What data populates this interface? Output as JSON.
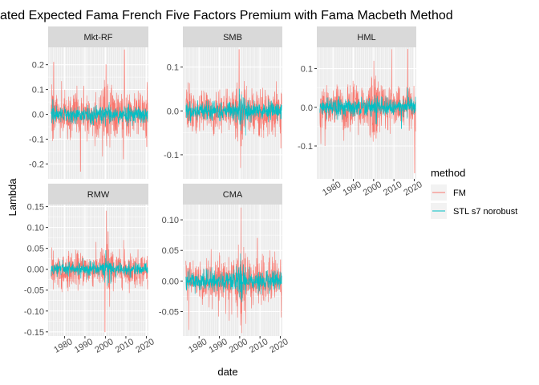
{
  "chart_data": {
    "type": "line",
    "title": "ated Expected Fama French Five Factors Premium with Fama Macbeth Method",
    "xlabel": "date",
    "ylabel": "Lambda",
    "x_range": [
      1972,
      2021
    ],
    "x_ticks": [
      1980,
      1990,
      2000,
      2010,
      2020
    ],
    "legend": {
      "title": "method",
      "position": "right",
      "entries": [
        {
          "name": "FM",
          "color": "#F8766D"
        },
        {
          "name": "STL s7 norobust",
          "color": "#00BFC4"
        }
      ]
    },
    "panels": [
      {
        "name": "Mkt-RF",
        "ylim": [
          -0.26,
          0.27
        ],
        "y_ticks": [
          -0.2,
          -0.1,
          0.0,
          0.1,
          0.2
        ],
        "y_tick_labels": [
          "-0.2",
          "-0.1",
          "0.0",
          "0.1",
          "0.2"
        ],
        "series": [
          {
            "name": "FM",
            "seed": 11,
            "base": 0.0,
            "vol": 0.045,
            "spikes": [
              [
                1974.7,
                0.21
              ],
              [
                1987.8,
                -0.23
              ],
              [
                1998.6,
                -0.17
              ],
              [
                2000.3,
                0.2
              ],
              [
                2008.8,
                -0.18
              ],
              [
                2009.3,
                0.26
              ],
              [
                2020.2,
                -0.13
              ],
              [
                2020.4,
                0.13
              ]
            ]
          },
          {
            "name": "STL s7 norobust",
            "seed": 12,
            "base": 0.0,
            "vol": 0.016,
            "spikes": [
              [
                1974.3,
                0.06
              ],
              [
                1974.6,
                -0.04
              ]
            ]
          }
        ]
      },
      {
        "name": "SMB",
        "ylim": [
          -0.155,
          0.145
        ],
        "y_ticks": [
          -0.1,
          0.0,
          0.1
        ],
        "y_tick_labels": [
          "-0.1",
          "0.0",
          "0.1"
        ],
        "series": [
          {
            "name": "FM",
            "seed": 21,
            "base": 0.0,
            "vol": 0.025,
            "spikes": [
              [
                1974.5,
                0.065
              ],
              [
                1999.7,
                0.14
              ],
              [
                2000.4,
                -0.13
              ],
              [
                2000.8,
                -0.08
              ],
              [
                2020.3,
                -0.085
              ]
            ]
          },
          {
            "name": "STL s7 norobust",
            "seed": 22,
            "base": 0.0,
            "vol": 0.01,
            "spikes": [
              [
                1999.8,
                0.05
              ],
              [
                2000.5,
                -0.045
              ]
            ]
          }
        ]
      },
      {
        "name": "HML",
        "ylim": [
          -0.185,
          0.155
        ],
        "y_ticks": [
          -0.1,
          0.0,
          0.1
        ],
        "y_tick_labels": [
          "-0.1",
          "0.0",
          "0.1"
        ],
        "series": [
          {
            "name": "FM",
            "seed": 31,
            "base": 0.0,
            "vol": 0.027,
            "spikes": [
              [
                2000.1,
                0.12
              ],
              [
                2001.2,
                -0.08
              ],
              [
                2008.9,
                0.15
              ],
              [
                2016.8,
                0.15
              ],
              [
                2020.2,
                -0.17
              ],
              [
                1976.0,
                -0.1
              ]
            ]
          },
          {
            "name": "STL s7 norobust",
            "seed": 32,
            "base": 0.0,
            "vol": 0.011,
            "spikes": [
              [
                2013.7,
                -0.055
              ],
              [
                2016.8,
                0.05
              ]
            ]
          }
        ]
      },
      {
        "name": "RMW",
        "ylim": [
          -0.16,
          0.155
        ],
        "y_ticks": [
          -0.15,
          -0.1,
          -0.05,
          0.0,
          0.05,
          0.1,
          0.15
        ],
        "y_tick_labels": [
          "-0.15",
          "-0.10",
          "-0.05",
          "0.00",
          "0.05",
          "0.10",
          "0.15"
        ],
        "series": [
          {
            "name": "FM",
            "seed": 41,
            "base": 0.0,
            "vol": 0.02,
            "spikes": [
              [
                1999.8,
                -0.15
              ],
              [
                2000.5,
                0.14
              ],
              [
                2001.3,
                0.09
              ],
              [
                2002.1,
                -0.09
              ],
              [
                2008.9,
                0.07
              ]
            ]
          },
          {
            "name": "STL s7 norobust",
            "seed": 42,
            "base": 0.0,
            "vol": 0.008,
            "spikes": [
              [
                2000.2,
                0.045
              ],
              [
                2000.9,
                -0.04
              ]
            ]
          }
        ]
      },
      {
        "name": "CMA",
        "ylim": [
          -0.09,
          0.125
        ],
        "y_ticks": [
          -0.05,
          0.0,
          0.05,
          0.1
        ],
        "y_tick_labels": [
          "-0.05",
          "0.00",
          "0.05",
          "0.10"
        ],
        "series": [
          {
            "name": "FM",
            "seed": 51,
            "base": 0.0,
            "vol": 0.018,
            "spikes": [
              [
                2000.6,
                0.12
              ],
              [
                2001.0,
                -0.085
              ],
              [
                1975.0,
                -0.08
              ],
              [
                2003.0,
                -0.07
              ],
              [
                2008.7,
                0.07
              ]
            ]
          },
          {
            "name": "STL s7 norobust",
            "seed": 52,
            "base": 0.0,
            "vol": 0.008,
            "spikes": [
              [
                2000.4,
                0.045
              ],
              [
                2001.1,
                -0.035
              ]
            ]
          }
        ]
      }
    ]
  }
}
